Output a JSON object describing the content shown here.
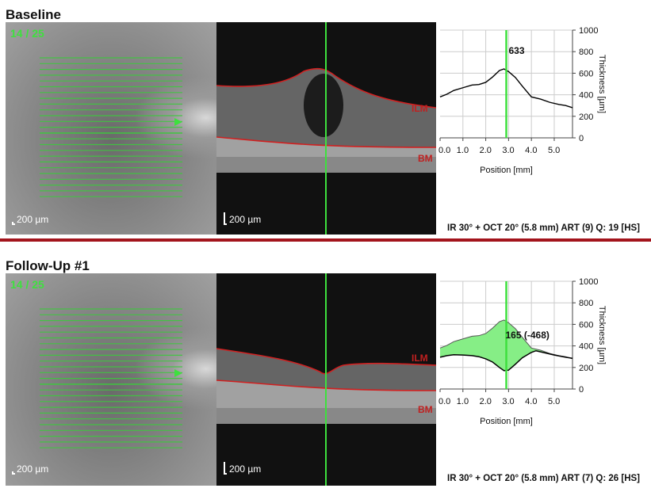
{
  "panels": [
    {
      "title": "Baseline",
      "scan_index": "14 / 25",
      "fundus_scale": "200 µm",
      "oct_scale": "200 µm",
      "layer_top": "ILM",
      "layer_bottom": "BM",
      "footer": "IR 30° + OCT 20° (5.8 mm) ART (9) Q: 19 [HS]"
    },
    {
      "title": "Follow-Up #1",
      "scan_index": "14 / 25",
      "fundus_scale": "200 µm",
      "oct_scale": "200 µm",
      "layer_top": "ILM",
      "layer_bottom": "BM",
      "footer": "IR 30° + OCT 20° (5.8 mm) ART (7) Q: 26 [HS]"
    }
  ],
  "colors": {
    "scan_line": "#3ec83e",
    "cursor": "#3ee03e",
    "layer": "#d02020",
    "separator": "#a3141c",
    "difference_fill": "#86ee86"
  },
  "chart_data": [
    {
      "type": "line",
      "xlabel": "Position [mm]",
      "ylabel": "Thickness [µm]",
      "xlim": [
        0,
        5.8
      ],
      "ylim": [
        0,
        1000
      ],
      "xticks": [
        "0.0",
        "1.0",
        "2.0",
        "3.0",
        "4.0",
        "5.0"
      ],
      "yticks": [
        "0",
        "200",
        "400",
        "600",
        "800",
        "1000"
      ],
      "grid": true,
      "cursor_x": 2.9,
      "annotation": "633",
      "series": [
        {
          "x": [
            0,
            0.3,
            0.6,
            1.0,
            1.4,
            1.7,
            2.0,
            2.3,
            2.6,
            2.8,
            3.0,
            3.3,
            3.6,
            4.0,
            4.4,
            4.8,
            5.2,
            5.5,
            5.8
          ],
          "y": [
            380,
            405,
            440,
            465,
            490,
            495,
            515,
            565,
            625,
            640,
            615,
            560,
            480,
            380,
            360,
            330,
            310,
            300,
            280
          ]
        }
      ]
    },
    {
      "type": "area",
      "xlabel": "Position [mm]",
      "ylabel": "Thickness [µm]",
      "xlim": [
        0,
        5.8
      ],
      "ylim": [
        0,
        1000
      ],
      "xticks": [
        "0.0",
        "1.0",
        "2.0",
        "3.0",
        "4.0",
        "5.0"
      ],
      "yticks": [
        "0",
        "200",
        "400",
        "600",
        "800",
        "1000"
      ],
      "grid": true,
      "cursor_x": 2.9,
      "annotation": "165 (-468)",
      "series": [
        {
          "x": [
            0,
            0.3,
            0.6,
            1.0,
            1.4,
            1.7,
            2.0,
            2.3,
            2.6,
            2.8,
            3.0,
            3.3,
            3.6,
            4.0,
            4.4,
            4.8,
            5.2,
            5.5,
            5.8
          ],
          "y": [
            380,
            405,
            440,
            465,
            490,
            495,
            515,
            565,
            625,
            640,
            615,
            560,
            480,
            380,
            360,
            330,
            310,
            300,
            280
          ]
        },
        {
          "x": [
            0,
            0.3,
            0.6,
            1.0,
            1.4,
            1.7,
            2.0,
            2.3,
            2.6,
            2.8,
            3.0,
            3.3,
            3.6,
            4.0,
            4.2,
            4.5,
            5.0,
            5.5,
            5.8
          ],
          "y": [
            295,
            310,
            318,
            315,
            310,
            300,
            280,
            250,
            200,
            170,
            175,
            230,
            290,
            340,
            355,
            340,
            315,
            295,
            285
          ]
        }
      ]
    }
  ]
}
